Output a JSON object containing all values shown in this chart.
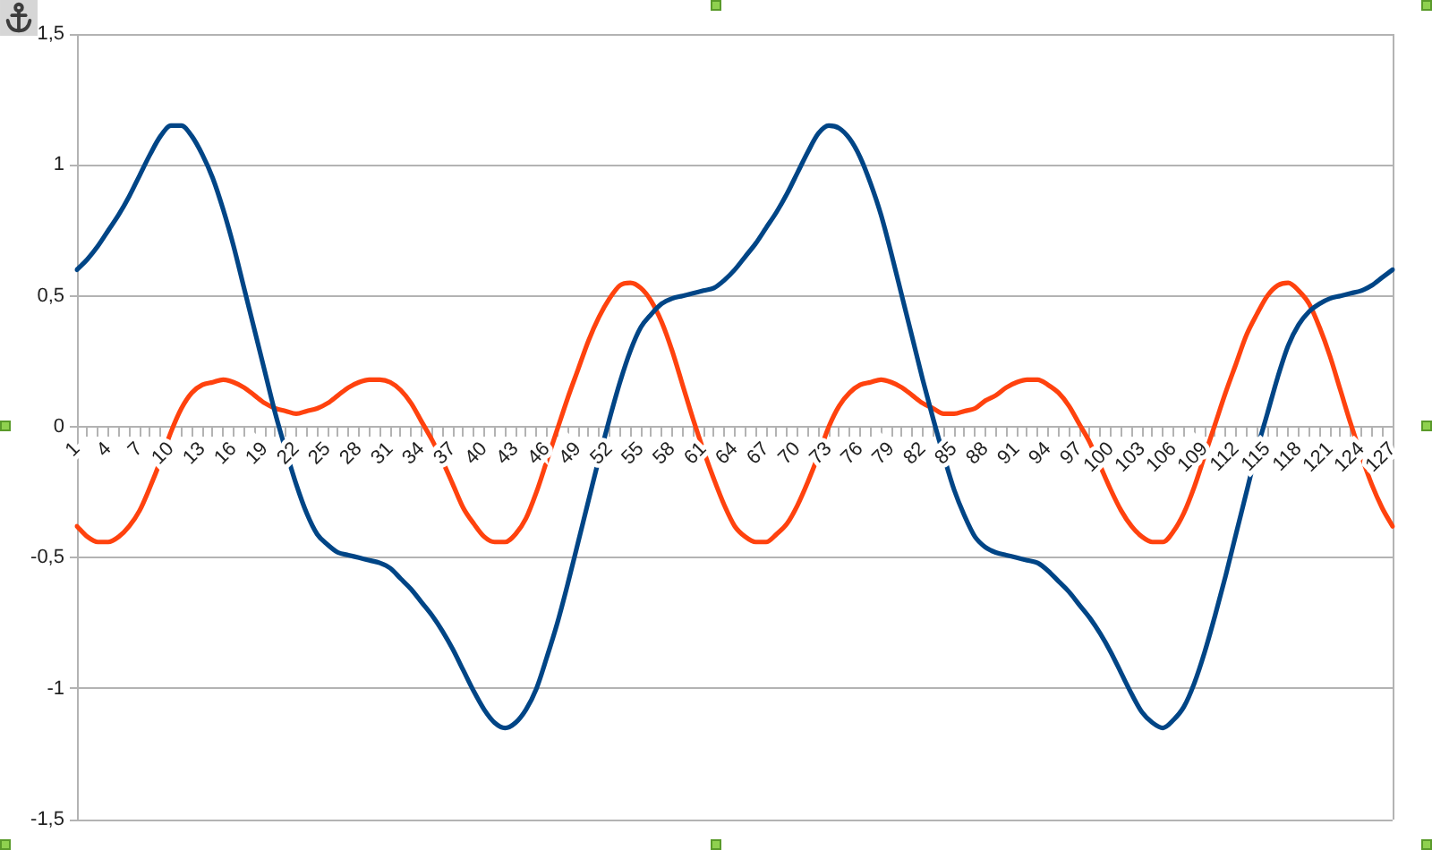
{
  "chart_data": {
    "type": "line",
    "categories": [
      "1",
      null,
      null,
      "4",
      null,
      null,
      "7",
      null,
      null,
      "10",
      null,
      null,
      "13",
      null,
      null,
      "16",
      null,
      null,
      "19",
      null,
      null,
      "22",
      null,
      null,
      "25",
      null,
      null,
      "28",
      null,
      null,
      "31",
      null,
      null,
      "34",
      null,
      null,
      "37",
      null,
      null,
      "40",
      null,
      null,
      "43",
      null,
      null,
      "46",
      null,
      null,
      "49",
      null,
      null,
      "52",
      null,
      null,
      "55",
      null,
      null,
      "58",
      null,
      null,
      "61",
      null,
      null,
      "64",
      null,
      null,
      "67",
      null,
      null,
      "70",
      null,
      null,
      "73",
      null,
      null,
      "76",
      null,
      null,
      "79",
      null,
      null,
      "82",
      null,
      null,
      "85",
      null,
      null,
      "88",
      null,
      null,
      "91",
      null,
      null,
      "94",
      null,
      null,
      "97",
      null,
      null,
      "100",
      null,
      null,
      "103",
      null,
      null,
      "106",
      null,
      null,
      "109",
      null,
      null,
      "112",
      null,
      null,
      "115",
      null,
      null,
      "118",
      null,
      null,
      "121",
      null,
      null,
      "124",
      null,
      null,
      "127"
    ],
    "series": [
      {
        "color": "#004586",
        "values": [
          0.6,
          0.64,
          0.69,
          0.75,
          0.81,
          0.88,
          0.96,
          1.04,
          1.11,
          1.15,
          1.15,
          1.11,
          1.04,
          0.95,
          0.83,
          0.69,
          0.53,
          0.37,
          0.21,
          0.05,
          -0.09,
          -0.22,
          -0.33,
          -0.41,
          -0.45,
          -0.48,
          -0.49,
          -0.5,
          -0.51,
          -0.52,
          -0.54,
          -0.58,
          -0.62,
          -0.67,
          -0.72,
          -0.78,
          -0.85,
          -0.93,
          -1.01,
          -1.08,
          -1.13,
          -1.15,
          -1.13,
          -1.08,
          -1.0,
          -0.88,
          -0.75,
          -0.6,
          -0.44,
          -0.28,
          -0.12,
          0.03,
          0.17,
          0.29,
          0.38,
          0.43,
          0.47,
          0.49,
          0.5,
          0.51,
          0.52,
          0.53,
          0.56,
          0.6,
          0.65,
          0.7,
          0.76,
          0.82,
          0.89,
          0.97,
          1.05,
          1.12,
          1.15,
          1.14,
          1.1,
          1.03,
          0.93,
          0.81,
          0.66,
          0.5,
          0.34,
          0.18,
          0.03,
          -0.11,
          -0.24,
          -0.34,
          -0.42,
          -0.46,
          -0.48,
          -0.49,
          -0.5,
          -0.51,
          -0.52,
          -0.55,
          -0.59,
          -0.63,
          -0.68,
          -0.73,
          -0.79,
          -0.86,
          -0.94,
          -1.02,
          -1.09,
          -1.13,
          -1.15,
          -1.12,
          -1.07,
          -0.98,
          -0.86,
          -0.72,
          -0.57,
          -0.41,
          -0.25,
          -0.09,
          0.05,
          0.19,
          0.31,
          0.39,
          0.44,
          0.47,
          0.49,
          0.5,
          0.51,
          0.52,
          0.54,
          0.57,
          0.6
        ]
      },
      {
        "color": "#ff420e",
        "values": [
          -0.38,
          -0.42,
          -0.44,
          -0.44,
          -0.42,
          -0.38,
          -0.32,
          -0.23,
          -0.13,
          -0.02,
          0.07,
          0.13,
          0.16,
          0.17,
          0.18,
          0.17,
          0.15,
          0.12,
          0.09,
          0.07,
          0.06,
          0.05,
          0.06,
          0.07,
          0.09,
          0.12,
          0.15,
          0.17,
          0.18,
          0.18,
          0.17,
          0.14,
          0.09,
          0.02,
          -0.05,
          -0.13,
          -0.22,
          -0.31,
          -0.37,
          -0.42,
          -0.44,
          -0.44,
          -0.41,
          -0.35,
          -0.25,
          -0.13,
          -0.01,
          0.11,
          0.22,
          0.33,
          0.42,
          0.49,
          0.54,
          0.55,
          0.53,
          0.48,
          0.4,
          0.29,
          0.16,
          0.03,
          -0.09,
          -0.2,
          -0.3,
          -0.38,
          -0.42,
          -0.44,
          -0.44,
          -0.41,
          -0.37,
          -0.3,
          -0.21,
          -0.11,
          0.0,
          0.08,
          0.13,
          0.16,
          0.17,
          0.18,
          0.17,
          0.15,
          0.12,
          0.09,
          0.07,
          0.05,
          0.05,
          0.06,
          0.07,
          0.1,
          0.12,
          0.15,
          0.17,
          0.18,
          0.18,
          0.16,
          0.13,
          0.08,
          0.01,
          -0.06,
          -0.15,
          -0.24,
          -0.32,
          -0.38,
          -0.42,
          -0.44,
          -0.44,
          -0.4,
          -0.33,
          -0.23,
          -0.11,
          0.01,
          0.13,
          0.24,
          0.35,
          0.43,
          0.5,
          0.54,
          0.55,
          0.52,
          0.47,
          0.38,
          0.27,
          0.14,
          0.01,
          -0.11,
          -0.22,
          -0.31,
          -0.38
        ]
      }
    ],
    "ylim": [
      -1.5,
      1.5
    ],
    "yticks": [
      {
        "value": -1.5,
        "label": "-1,5"
      },
      -1,
      {
        "value": -0.5,
        "label": "-0,5"
      },
      0,
      {
        "value": 0.5,
        "label": "0,5"
      },
      1,
      {
        "value": 1.5,
        "label": "1,5"
      }
    ],
    "grid": "y",
    "marker": "none",
    "line_style": "solid"
  }
}
